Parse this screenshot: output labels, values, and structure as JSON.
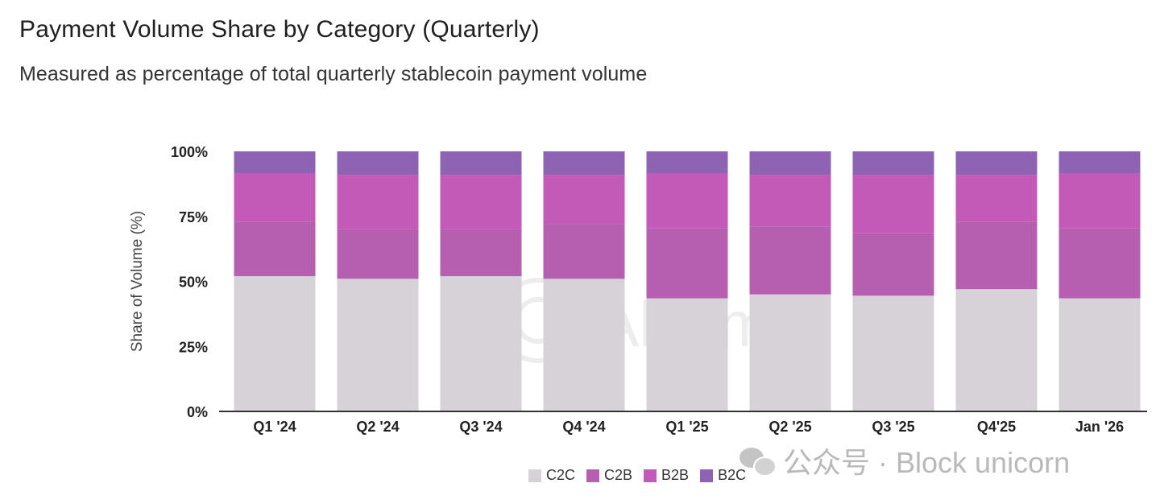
{
  "title": "Payment Volume Share by Category (Quarterly)",
  "subtitle": "Measured as percentage of total quarterly stablecoin payment volume",
  "chart_data": {
    "type": "bar",
    "stacked": true,
    "ylabel": "Share of Volume (%)",
    "ylim": [
      0,
      100
    ],
    "yticks": [
      "0%",
      "25%",
      "50%",
      "75%",
      "100%"
    ],
    "categories": [
      "Q1 '24",
      "Q2 '24",
      "Q3 '24",
      "Q4 '24",
      "Q1 '25",
      "Q2 '25",
      "Q3 '25",
      "Q4'25",
      "Jan '26"
    ],
    "series": [
      {
        "name": "C2C",
        "color": "#d7d2d7",
        "values": [
          52,
          51,
          52,
          51,
          43.5,
          45,
          44.5,
          47,
          43.5
        ]
      },
      {
        "name": "C2B",
        "color": "#b65fb0",
        "values": [
          21,
          19,
          18,
          21,
          27,
          26,
          24,
          26,
          27
        ]
      },
      {
        "name": "B2B",
        "color": "#c45ab8",
        "values": [
          18.5,
          21,
          21,
          19,
          21,
          20,
          22.5,
          18,
          21
        ]
      },
      {
        "name": "B2C",
        "color": "#8e63b3",
        "values": [
          8.5,
          9,
          9,
          9,
          8.5,
          9,
          9,
          9,
          8.5
        ]
      }
    ],
    "legend_position": "bottom",
    "grid": false
  },
  "watermark": "Allium",
  "signature": "公众号 · Block unicorn"
}
